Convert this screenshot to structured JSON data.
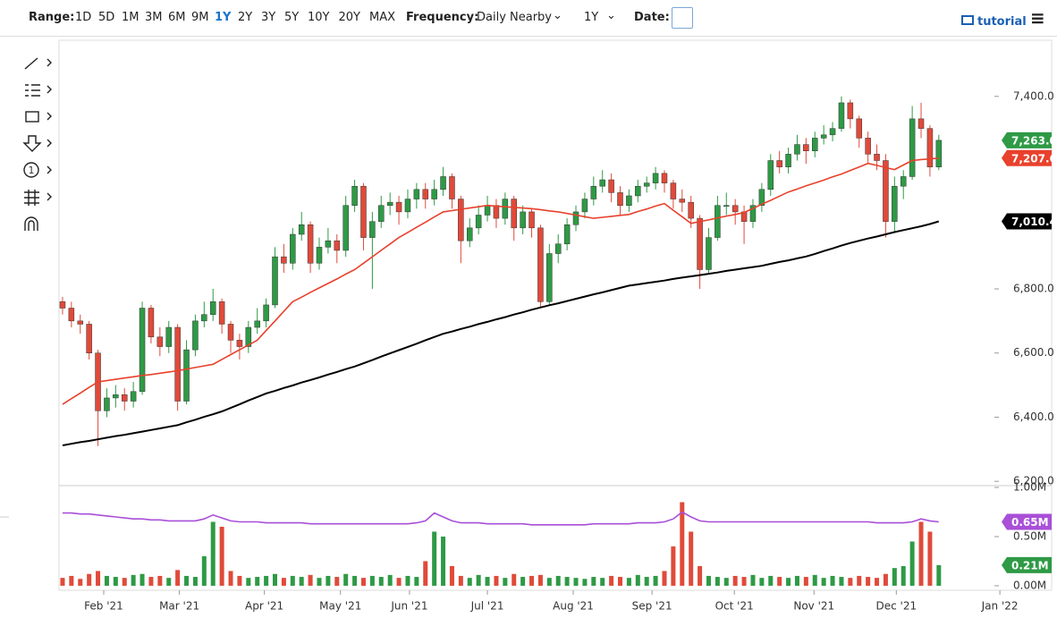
{
  "toolbar": {
    "range_label": "Range:",
    "ranges": [
      "1D",
      "5D",
      "1M",
      "3M",
      "6M",
      "9M",
      "1Y",
      "2Y",
      "3Y",
      "5Y",
      "10Y",
      "20Y",
      "MAX"
    ],
    "active_range": "1Y",
    "frequency_label": "Frequency:",
    "frequency": "Daily Nearby",
    "period": "1Y",
    "date_label": "Date:",
    "tutorial": "tutorial"
  },
  "chart_data": [
    {
      "type": "candlestick",
      "xlim": [
        -0.4,
        107
      ],
      "xticks": [
        {
          "value": 4.65,
          "label": "Feb '21"
        },
        {
          "value": 13.2,
          "label": "Mar '21"
        },
        {
          "value": 22.8,
          "label": "Apr '21"
        },
        {
          "value": 31.4,
          "label": "May '21"
        },
        {
          "value": 39.2,
          "label": "Jun '21"
        },
        {
          "value": 48.0,
          "label": "Jul '21"
        },
        {
          "value": 57.7,
          "label": "Aug '21"
        },
        {
          "value": 66.6,
          "label": "Sep '21"
        },
        {
          "value": 75.9,
          "label": "Oct '21"
        },
        {
          "value": 84.9,
          "label": "Nov '21"
        },
        {
          "value": 94.2,
          "label": "Dec '21"
        },
        {
          "value": 105.9,
          "label": "Jan '22"
        }
      ],
      "ylim": [
        6195,
        7575
      ],
      "yticks": [
        {
          "value": 6200,
          "label": "6,200.0"
        },
        {
          "value": 6400,
          "label": "6,400.0"
        },
        {
          "value": 6600,
          "label": "6,600.0"
        },
        {
          "value": 6800,
          "label": "6,800.0"
        },
        {
          "value": 7400,
          "label": "7,400.0"
        }
      ],
      "up_color": "#2e9a45",
      "down_color": "#e04a3a",
      "open": [
        6760,
        6740,
        6700,
        6690,
        6600,
        6420,
        6460,
        6470,
        6450,
        6480,
        6740,
        6650,
        6620,
        6680,
        6450,
        6610,
        6700,
        6720,
        6760,
        6690,
        6640,
        6620,
        6680,
        6700,
        6750,
        6900,
        6880,
        6970,
        7000,
        6880,
        6930,
        6950,
        6920,
        7060,
        7120,
        6960,
        7010,
        7060,
        7070,
        7040,
        7080,
        7110,
        7080,
        7110,
        7150,
        7080,
        6950,
        6990,
        7030,
        7060,
        7020,
        7080,
        6990,
        7040,
        6990,
        6760,
        6910,
        6940,
        7000,
        7040,
        7080,
        7120,
        7140,
        7100,
        7060,
        7090,
        7120,
        7130,
        7160,
        7130,
        7080,
        7070,
        7020,
        6860,
        6960,
        7060,
        7060,
        7040,
        7010,
        7060,
        7110,
        7200,
        7180,
        7220,
        7250,
        7230,
        7270,
        7280,
        7300,
        7380,
        7330,
        7270,
        7220,
        7200,
        7010,
        7120,
        7150,
        7330,
        7300,
        7180
      ],
      "high": [
        6775,
        6760,
        6720,
        6700,
        6610,
        6490,
        6500,
        6490,
        6510,
        6760,
        6750,
        6680,
        6700,
        6690,
        6640,
        6720,
        6760,
        6800,
        6770,
        6700,
        6660,
        6700,
        6740,
        6770,
        6930,
        6940,
        6990,
        7040,
        7010,
        6960,
        6990,
        6970,
        7090,
        7140,
        7130,
        7040,
        7090,
        7100,
        7090,
        7110,
        7130,
        7130,
        7140,
        7180,
        7160,
        7090,
        7020,
        7060,
        7090,
        7080,
        7100,
        7090,
        7060,
        7050,
        7000,
        6940,
        6970,
        7020,
        7060,
        7100,
        7150,
        7170,
        7160,
        7120,
        7110,
        7140,
        7150,
        7180,
        7170,
        7140,
        7110,
        7090,
        7030,
        6990,
        7090,
        7100,
        7080,
        7060,
        7080,
        7130,
        7220,
        7230,
        7240,
        7280,
        7270,
        7290,
        7310,
        7320,
        7400,
        7390,
        7340,
        7290,
        7250,
        7220,
        7150,
        7170,
        7370,
        7380,
        7310,
        7280
      ],
      "low": [
        6720,
        6680,
        6660,
        6580,
        6310,
        6400,
        6430,
        6420,
        6430,
        6470,
        6630,
        6590,
        6600,
        6420,
        6440,
        6590,
        6680,
        6700,
        6660,
        6600,
        6580,
        6600,
        6660,
        6680,
        6740,
        6850,
        6860,
        6950,
        6850,
        6860,
        6910,
        6880,
        6900,
        7040,
        6920,
        6800,
        6990,
        7030,
        7000,
        7020,
        7050,
        7050,
        7060,
        7090,
        7050,
        6880,
        6930,
        6970,
        7010,
        6990,
        7000,
        6950,
        6970,
        6960,
        6740,
        6750,
        6880,
        6920,
        6980,
        7020,
        7060,
        7100,
        7070,
        7030,
        7040,
        7070,
        7100,
        7110,
        7100,
        7050,
        7040,
        6990,
        6800,
        6850,
        6950,
        7030,
        7000,
        6940,
        6990,
        7040,
        7090,
        7160,
        7160,
        7200,
        7190,
        7210,
        7250,
        7260,
        7290,
        7300,
        7240,
        7190,
        7170,
        6960,
        6980,
        7080,
        7140,
        7270,
        7150,
        7170
      ],
      "close": [
        6740,
        6700,
        6690,
        6600,
        6420,
        6460,
        6470,
        6450,
        6480,
        6740,
        6650,
        6620,
        6680,
        6450,
        6610,
        6700,
        6720,
        6760,
        6690,
        6640,
        6620,
        6680,
        6700,
        6750,
        6900,
        6880,
        6970,
        7000,
        6880,
        6930,
        6950,
        6920,
        7060,
        7120,
        6960,
        7010,
        7060,
        7070,
        7040,
        7080,
        7110,
        7080,
        7110,
        7150,
        7080,
        6950,
        6990,
        7030,
        7060,
        7020,
        7080,
        6990,
        7040,
        6990,
        6760,
        6910,
        6940,
        7000,
        7040,
        7080,
        7120,
        7140,
        7100,
        7060,
        7090,
        7120,
        7130,
        7160,
        7130,
        7080,
        7070,
        7020,
        6860,
        6960,
        7060,
        7060,
        7040,
        7010,
        7060,
        7110,
        7200,
        7180,
        7220,
        7250,
        7230,
        7270,
        7280,
        7300,
        7380,
        7330,
        7270,
        7220,
        7200,
        7010,
        7120,
        7150,
        7330,
        7300,
        7180,
        7263
      ],
      "series": [
        {
          "color": "#e8412c",
          "values": [
            6440,
            6458,
            6475,
            6493,
            6510,
            6514,
            6518,
            6522,
            6526,
            6530,
            6533,
            6537,
            6541,
            6545,
            6550,
            6555,
            6560,
            6565,
            6580,
            6595,
            6610,
            6625,
            6640,
            6670,
            6700,
            6730,
            6760,
            6774,
            6789,
            6803,
            6817,
            6831,
            6846,
            6860,
            6880,
            6900,
            6920,
            6940,
            6960,
            6976,
            6992,
            7008,
            7024,
            7040,
            7044,
            7048,
            7052,
            7056,
            7060,
            7058,
            7056,
            7054,
            7052,
            7050,
            7047,
            7043,
            7040,
            7035,
            7030,
            7025,
            7020,
            7023,
            7026,
            7029,
            7032,
            7041,
            7049,
            7058,
            7066,
            7045,
            7025,
            7004,
            7010,
            7015,
            7021,
            7027,
            7032,
            7038,
            7051,
            7064,
            7076,
            7089,
            7102,
            7111,
            7121,
            7130,
            7139,
            7149,
            7158,
            7169,
            7180,
            7191,
            7185,
            7178,
            7172,
            7186,
            7200,
            7203,
            7205,
            7207.6
          ]
        },
        {
          "color": "#000000",
          "values": [
            6312,
            6317,
            6322,
            6326,
            6331,
            6336,
            6341,
            6345,
            6350,
            6355,
            6360,
            6365,
            6370,
            6375,
            6384,
            6392,
            6401,
            6409,
            6418,
            6429,
            6440,
            6452,
            6463,
            6474,
            6482,
            6491,
            6499,
            6508,
            6516,
            6524,
            6533,
            6541,
            6550,
            6558,
            6568,
            6578,
            6589,
            6599,
            6609,
            6619,
            6629,
            6640,
            6650,
            6660,
            6667,
            6675,
            6682,
            6690,
            6697,
            6705,
            6712,
            6720,
            6727,
            6735,
            6742,
            6749,
            6755,
            6762,
            6769,
            6776,
            6783,
            6789,
            6796,
            6803,
            6810,
            6814,
            6818,
            6822,
            6826,
            6831,
            6835,
            6839,
            6843,
            6847,
            6851,
            6856,
            6860,
            6864,
            6868,
            6872,
            6878,
            6884,
            6889,
            6895,
            6901,
            6909,
            6918,
            6926,
            6935,
            6943,
            6950,
            6957,
            6963,
            6970,
            6977,
            6983,
            6989,
            6995,
            7002,
            7010.4
          ]
        }
      ],
      "last_labels": [
        {
          "value": 7263.0,
          "label": "7,263.0",
          "color": "#2e9a45"
        },
        {
          "value": 7207.6,
          "label": "7,207.6",
          "color": "#e8412c"
        },
        {
          "value": 7010.4,
          "label": "7,010.4",
          "color": "#000000"
        }
      ]
    },
    {
      "type": "bar",
      "ylim": [
        -0.046,
        1.0
      ],
      "yticks": [
        {
          "value": 0,
          "label": "0.00M"
        },
        {
          "value": 0.5,
          "label": "0.50M"
        },
        {
          "value": 1.0,
          "label": "1.00M"
        }
      ],
      "values": [
        0.08,
        0.1,
        0.07,
        0.12,
        0.15,
        0.1,
        0.09,
        0.08,
        0.11,
        0.12,
        0.09,
        0.1,
        0.08,
        0.16,
        0.1,
        0.09,
        0.3,
        0.65,
        0.6,
        0.15,
        0.1,
        0.08,
        0.09,
        0.1,
        0.12,
        0.08,
        0.1,
        0.09,
        0.11,
        0.08,
        0.1,
        0.09,
        0.12,
        0.1,
        0.08,
        0.1,
        0.09,
        0.11,
        0.08,
        0.1,
        0.09,
        0.25,
        0.55,
        0.5,
        0.2,
        0.1,
        0.08,
        0.11,
        0.09,
        0.1,
        0.08,
        0.12,
        0.09,
        0.1,
        0.11,
        0.08,
        0.1,
        0.09,
        0.08,
        0.07,
        0.09,
        0.08,
        0.1,
        0.09,
        0.08,
        0.11,
        0.09,
        0.1,
        0.15,
        0.4,
        0.85,
        0.55,
        0.2,
        0.1,
        0.09,
        0.08,
        0.1,
        0.09,
        0.11,
        0.08,
        0.1,
        0.09,
        0.08,
        0.1,
        0.09,
        0.11,
        0.08,
        0.1,
        0.09,
        0.08,
        0.1,
        0.09,
        0.08,
        0.12,
        0.18,
        0.2,
        0.45,
        0.65,
        0.55,
        0.21
      ],
      "series": [
        {
          "color": "#a94fd8",
          "values": [
            0.74,
            0.74,
            0.73,
            0.73,
            0.72,
            0.71,
            0.7,
            0.69,
            0.68,
            0.68,
            0.67,
            0.67,
            0.66,
            0.66,
            0.66,
            0.66,
            0.68,
            0.72,
            0.69,
            0.66,
            0.65,
            0.65,
            0.65,
            0.64,
            0.64,
            0.64,
            0.64,
            0.64,
            0.63,
            0.63,
            0.63,
            0.63,
            0.63,
            0.63,
            0.63,
            0.63,
            0.63,
            0.63,
            0.63,
            0.63,
            0.64,
            0.66,
            0.74,
            0.7,
            0.66,
            0.64,
            0.64,
            0.64,
            0.63,
            0.63,
            0.63,
            0.63,
            0.63,
            0.62,
            0.62,
            0.62,
            0.62,
            0.62,
            0.62,
            0.62,
            0.63,
            0.63,
            0.63,
            0.63,
            0.63,
            0.64,
            0.64,
            0.64,
            0.65,
            0.68,
            0.75,
            0.7,
            0.66,
            0.65,
            0.65,
            0.65,
            0.65,
            0.65,
            0.65,
            0.65,
            0.65,
            0.65,
            0.65,
            0.65,
            0.65,
            0.65,
            0.65,
            0.65,
            0.65,
            0.65,
            0.65,
            0.65,
            0.64,
            0.64,
            0.64,
            0.64,
            0.65,
            0.68,
            0.66,
            0.65
          ]
        }
      ],
      "last_labels": [
        {
          "value": 0.65,
          "label": "0.65M",
          "color": "#a94fd8"
        },
        {
          "value": 0.21,
          "label": "0.21M",
          "color": "#2e9a45"
        }
      ]
    }
  ]
}
